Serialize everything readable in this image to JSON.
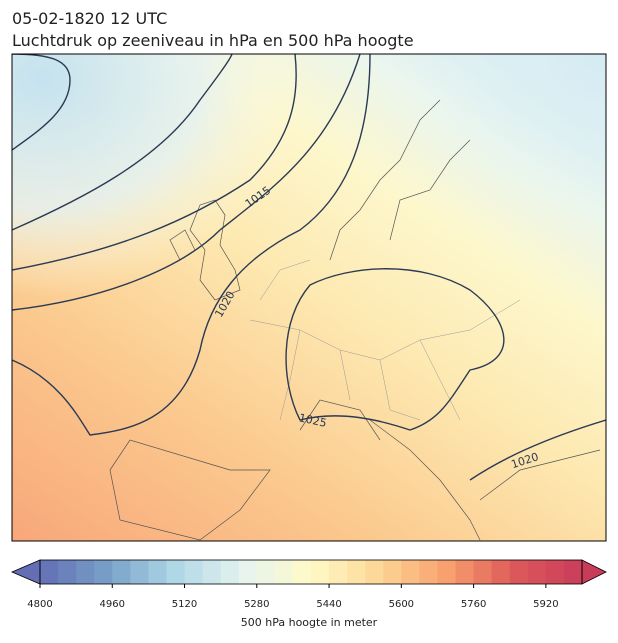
{
  "header": {
    "title": "05-02-1820 12 UTC",
    "subtitle": "Luchtdruk op zeeniveau in hPa en 500 hPa hoogte"
  },
  "contour_labels": [
    "1015",
    "1020",
    "1025",
    "1020"
  ],
  "colorbar": {
    "label": "500 hPa hoogte in meter",
    "range": [
      4800,
      6000
    ],
    "levels_step": 40,
    "ticks": [
      4800,
      4960,
      5120,
      5280,
      5440,
      5600,
      5760,
      5920
    ]
  }
}
